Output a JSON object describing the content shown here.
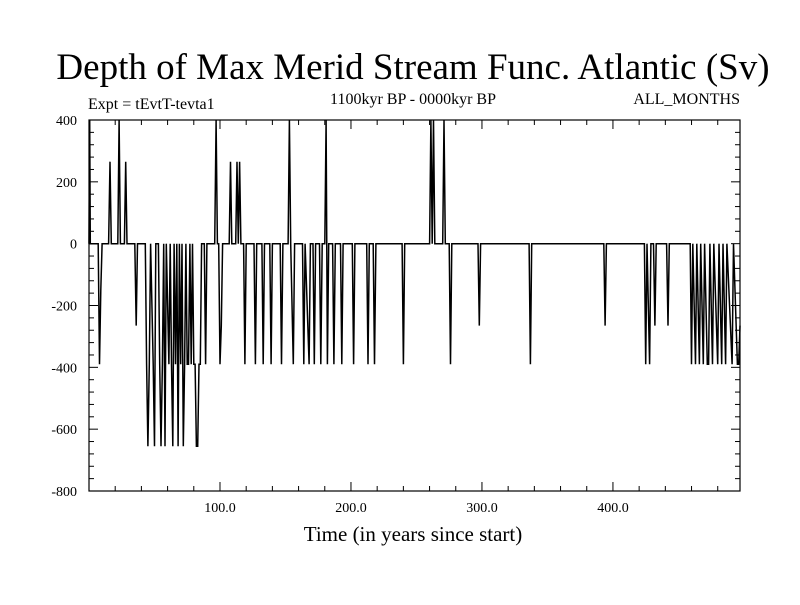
{
  "chart_data": {
    "type": "line",
    "title": "Depth of Max Merid Stream Func. Atlantic (Sv)",
    "subtitle_left": "Expt = tEvtT-tevta1",
    "subtitle_center": "1100kyr BP - 0000kyr BP",
    "subtitle_right": "ALL_MONTHS",
    "xlabel": "Time (in years since start)",
    "ylabel": "",
    "xlim": [
      0,
      497
    ],
    "ylim": [
      -800,
      400
    ],
    "x_ticks": [
      100,
      200,
      300,
      400
    ],
    "x_tick_labels": [
      "100.0",
      "200.0",
      "300.0",
      "400.0"
    ],
    "y_ticks": [
      400,
      200,
      0,
      -200,
      -400,
      -600,
      -800
    ],
    "y_tick_labels": [
      "400",
      "200",
      "0",
      "-200",
      "-400",
      "-600",
      "-800"
    ],
    "grid": false,
    "series": [
      {
        "color": "#000000",
        "points": [
          [
            0,
            0
          ],
          [
            0.5,
            400
          ],
          [
            1,
            0
          ],
          [
            7,
            0
          ],
          [
            8,
            -390
          ],
          [
            9,
            -150
          ],
          [
            10,
            0
          ],
          [
            15,
            0
          ],
          [
            16,
            265
          ],
          [
            17,
            0
          ],
          [
            22,
            0
          ],
          [
            23,
            400
          ],
          [
            24,
            0
          ],
          [
            27,
            0
          ],
          [
            28,
            265
          ],
          [
            29,
            0
          ],
          [
            35,
            0
          ],
          [
            36,
            -265
          ],
          [
            37,
            0
          ],
          [
            40,
            0
          ],
          [
            43,
            0
          ],
          [
            44,
            -390
          ],
          [
            45,
            -655
          ],
          [
            46,
            -390
          ],
          [
            47,
            0
          ],
          [
            49,
            -390
          ],
          [
            50,
            -655
          ],
          [
            51,
            0
          ],
          [
            53,
            0
          ],
          [
            54,
            -390
          ],
          [
            55,
            -655
          ],
          [
            56,
            -390
          ],
          [
            57,
            0
          ],
          [
            58,
            -655
          ],
          [
            59,
            0
          ],
          [
            61,
            -390
          ],
          [
            62,
            0
          ],
          [
            63,
            -390
          ],
          [
            64,
            -655
          ],
          [
            65,
            0
          ],
          [
            66,
            -390
          ],
          [
            67,
            0
          ],
          [
            68,
            -655
          ],
          [
            69,
            0
          ],
          [
            70,
            -390
          ],
          [
            71,
            0
          ],
          [
            72,
            -655
          ],
          [
            73,
            -390
          ],
          [
            74,
            0
          ],
          [
            75,
            -390
          ],
          [
            76,
            -390
          ],
          [
            77,
            0
          ],
          [
            78,
            -390
          ],
          [
            79,
            0
          ],
          [
            80,
            -390
          ],
          [
            81,
            -390
          ],
          [
            82,
            -655
          ],
          [
            83,
            -655
          ],
          [
            84,
            -390
          ],
          [
            85,
            -390
          ],
          [
            86,
            0
          ],
          [
            88,
            0
          ],
          [
            89,
            -390
          ],
          [
            90,
            0
          ],
          [
            96,
            0
          ],
          [
            97,
            400
          ],
          [
            98,
            0
          ],
          [
            99,
            0
          ],
          [
            100,
            -390
          ],
          [
            101,
            -265
          ],
          [
            102,
            0
          ],
          [
            107,
            0
          ],
          [
            108,
            265
          ],
          [
            109,
            0
          ],
          [
            112,
            0
          ],
          [
            113,
            265
          ],
          [
            114,
            0
          ],
          [
            115,
            265
          ],
          [
            116,
            0
          ],
          [
            118,
            0
          ],
          [
            119,
            -390
          ],
          [
            120,
            0
          ],
          [
            126,
            0
          ],
          [
            127,
            -390
          ],
          [
            128,
            0
          ],
          [
            132,
            0
          ],
          [
            133,
            -390
          ],
          [
            134,
            0
          ],
          [
            138,
            0
          ],
          [
            139,
            -390
          ],
          [
            140,
            0
          ],
          [
            146,
            0
          ],
          [
            147,
            -390
          ],
          [
            148,
            0
          ],
          [
            152,
            0
          ],
          [
            153,
            400
          ],
          [
            154,
            0
          ],
          [
            156,
            -390
          ],
          [
            157,
            0
          ],
          [
            163,
            0
          ],
          [
            164,
            -390
          ],
          [
            165,
            0
          ],
          [
            168,
            -390
          ],
          [
            169,
            0
          ],
          [
            171,
            0
          ],
          [
            172,
            -390
          ],
          [
            173,
            0
          ],
          [
            176,
            0
          ],
          [
            177,
            -390
          ],
          [
            178,
            0
          ],
          [
            180,
            0
          ],
          [
            181,
            400
          ],
          [
            182,
            -390
          ],
          [
            183,
            0
          ],
          [
            186,
            0
          ],
          [
            187,
            -390
          ],
          [
            188,
            0
          ],
          [
            192,
            0
          ],
          [
            193,
            -390
          ],
          [
            194,
            0
          ],
          [
            201,
            0
          ],
          [
            202,
            -390
          ],
          [
            203,
            0
          ],
          [
            212,
            0
          ],
          [
            213,
            -390
          ],
          [
            214,
            0
          ],
          [
            217,
            0
          ],
          [
            218,
            -390
          ],
          [
            219,
            0
          ],
          [
            239,
            0
          ],
          [
            240,
            -390
          ],
          [
            241,
            0
          ],
          [
            260,
            0
          ],
          [
            261,
            400
          ],
          [
            262,
            0
          ],
          [
            263,
            400
          ],
          [
            264,
            0
          ],
          [
            270,
            0
          ],
          [
            271,
            400
          ],
          [
            272,
            0
          ],
          [
            275,
            0
          ],
          [
            276,
            -390
          ],
          [
            277,
            0
          ],
          [
            297,
            0
          ],
          [
            298,
            -265
          ],
          [
            299,
            0
          ],
          [
            336,
            0
          ],
          [
            337,
            -390
          ],
          [
            338,
            0
          ],
          [
            393,
            0
          ],
          [
            394,
            -265
          ],
          [
            395,
            0
          ],
          [
            424,
            0
          ],
          [
            425,
            -390
          ],
          [
            426,
            0
          ],
          [
            428,
            -390
          ],
          [
            429,
            0
          ],
          [
            431,
            0
          ],
          [
            432,
            -265
          ],
          [
            433,
            0
          ],
          [
            441,
            0
          ],
          [
            442,
            -265
          ],
          [
            443,
            0
          ],
          [
            459,
            0
          ],
          [
            460,
            -390
          ],
          [
            461,
            0
          ],
          [
            463,
            -390
          ],
          [
            464,
            0
          ],
          [
            466,
            -390
          ],
          [
            467,
            0
          ],
          [
            469,
            -390
          ],
          [
            470,
            0
          ],
          [
            472,
            -390
          ],
          [
            473,
            -390
          ],
          [
            474,
            0
          ],
          [
            476,
            -390
          ],
          [
            477,
            0
          ],
          [
            480,
            -390
          ],
          [
            481,
            0
          ],
          [
            483,
            -390
          ],
          [
            484,
            0
          ],
          [
            486,
            -390
          ],
          [
            487,
            0
          ],
          [
            491,
            -390
          ],
          [
            492,
            0
          ],
          [
            495,
            -390
          ],
          [
            496,
            -390
          ],
          [
            497,
            -265
          ]
        ]
      }
    ]
  }
}
